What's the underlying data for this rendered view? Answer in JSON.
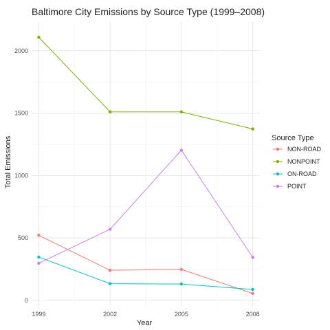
{
  "chart_data": {
    "type": "line",
    "title": "Baltimore City Emissions by Source Type (1999–2008)",
    "xlabel": "Year",
    "ylabel": "Total Emissions",
    "x": [
      1999,
      2002,
      2005,
      2008
    ],
    "x_ticks": [
      "1999",
      "2002",
      "2005",
      "2008"
    ],
    "y_ticks": [
      0,
      500,
      1000,
      1500,
      2000
    ],
    "xlim": [
      1998.7,
      2008.3
    ],
    "ylim": [
      -50,
      2230
    ],
    "grid": true,
    "legend": {
      "title": "Source Type",
      "placement": "right"
    },
    "series": [
      {
        "name": "NON-ROAD",
        "color": "#F8766D",
        "values": [
          522,
          241,
          248,
          56
        ]
      },
      {
        "name": "NONPOINT",
        "color": "#7CAE00",
        "values": [
          2108,
          1510,
          1510,
          1373
        ]
      },
      {
        "name": "ON-ROAD",
        "color": "#00BFC4",
        "values": [
          347,
          134,
          131,
          88
        ]
      },
      {
        "name": "POINT",
        "color": "#C77CFF",
        "values": [
          297,
          570,
          1203,
          345
        ]
      }
    ]
  }
}
